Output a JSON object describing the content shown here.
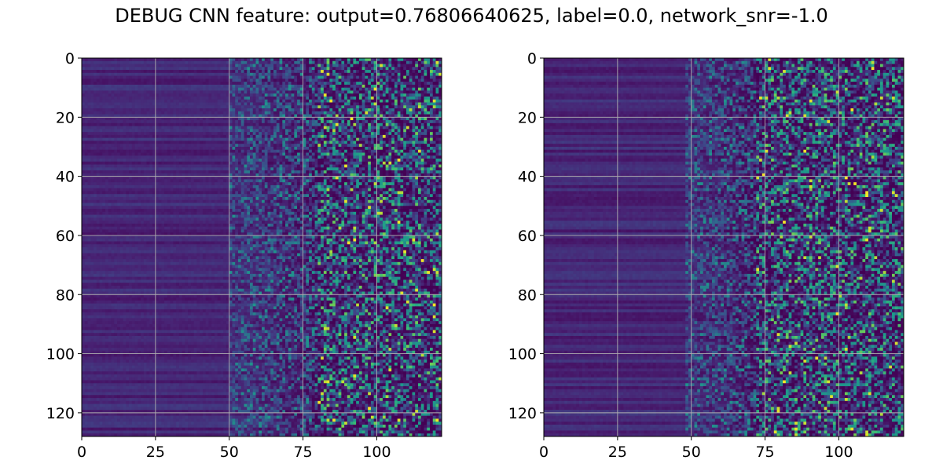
{
  "figure": {
    "title": "DEBUG CNN feature: output=0.76806640625, label=0.0, network_snr=-1.0"
  },
  "chart_data": [
    {
      "type": "heatmap",
      "panel": "left",
      "rows": 128,
      "cols": 122,
      "xlim": [
        0,
        122
      ],
      "ylim": [
        128,
        0
      ],
      "xticks": [
        0,
        25,
        50,
        75,
        100
      ],
      "yticks": [
        0,
        20,
        40,
        60,
        80,
        100,
        120
      ],
      "grid": true,
      "colormap": "viridis",
      "low_noise_until_col": 50,
      "transition_end_col": 80,
      "seed": 7
    },
    {
      "type": "heatmap",
      "panel": "right",
      "rows": 128,
      "cols": 122,
      "xlim": [
        0,
        122
      ],
      "ylim": [
        128,
        0
      ],
      "xticks": [
        0,
        25,
        50,
        75,
        100
      ],
      "yticks": [
        0,
        20,
        40,
        60,
        80,
        100,
        120
      ],
      "grid": true,
      "colormap": "viridis",
      "low_noise_until_col": 48,
      "transition_end_col": 72,
      "seed": 13
    }
  ]
}
